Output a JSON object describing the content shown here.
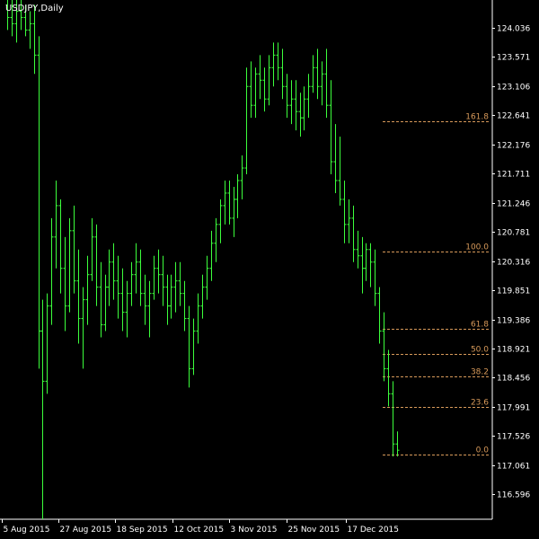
{
  "title": "USDJPY,Daily",
  "colors": {
    "background": "#000000",
    "candle": "#3cff3c",
    "axis": "#ffffff",
    "fib": "#d89a5a"
  },
  "chart_data": {
    "type": "bar",
    "symbol": "USDJPY",
    "timeframe": "Daily",
    "ylim": [
      116.2,
      124.45
    ],
    "y_ticks": [
      "124.036",
      "123.571",
      "123.106",
      "122.641",
      "122.176",
      "121.711",
      "121.246",
      "120.781",
      "120.316",
      "119.851",
      "119.386",
      "118.921",
      "118.456",
      "117.991",
      "117.526",
      "117.061",
      "116.596"
    ],
    "x_tick_labels": [
      "5 Aug 2015",
      "27 Aug 2015",
      "18 Sep 2015",
      "12 Oct 2015",
      "3 Nov 2015",
      "25 Nov 2015",
      "17 Dec 2015"
    ],
    "fibonacci": [
      {
        "label": "161.8",
        "value": 122.55
      },
      {
        "label": "100.0",
        "value": 120.47
      },
      {
        "label": "61.8",
        "value": 119.23
      },
      {
        "label": "50.0",
        "value": 118.84
      },
      {
        "label": "38.2",
        "value": 118.48
      },
      {
        "label": "23.6",
        "value": 117.99
      },
      {
        "label": "0.0",
        "value": 117.23
      }
    ],
    "ohlc": [
      [
        124.4,
        124.6,
        124.0,
        124.2
      ],
      [
        124.2,
        124.5,
        123.9,
        124.1
      ],
      [
        124.1,
        124.5,
        123.8,
        124.3
      ],
      [
        124.3,
        124.6,
        124.0,
        124.2
      ],
      [
        124.2,
        124.4,
        123.9,
        124.0
      ],
      [
        124.0,
        124.3,
        123.7,
        124.1
      ],
      [
        124.1,
        124.4,
        123.3,
        123.6
      ],
      [
        123.6,
        123.9,
        118.6,
        119.2
      ],
      [
        119.2,
        119.7,
        116.2,
        118.4
      ],
      [
        118.4,
        119.8,
        118.2,
        119.6
      ],
      [
        119.6,
        121.0,
        119.3,
        120.7
      ],
      [
        120.7,
        121.6,
        120.2,
        121.2
      ],
      [
        121.2,
        121.3,
        119.8,
        120.2
      ],
      [
        120.2,
        120.7,
        119.2,
        119.6
      ],
      [
        119.6,
        121.0,
        119.5,
        120.8
      ],
      [
        120.8,
        121.2,
        119.8,
        120.0
      ],
      [
        120.0,
        120.5,
        119.0,
        119.4
      ],
      [
        119.4,
        119.9,
        118.6,
        119.7
      ],
      [
        119.7,
        120.4,
        119.3,
        120.1
      ],
      [
        120.1,
        121.0,
        120.0,
        120.7
      ],
      [
        120.7,
        120.9,
        119.6,
        119.9
      ],
      [
        119.9,
        120.3,
        119.1,
        119.3
      ],
      [
        119.3,
        120.1,
        119.2,
        119.9
      ],
      [
        119.9,
        120.5,
        119.6,
        120.3
      ],
      [
        120.3,
        120.6,
        119.7,
        120.0
      ],
      [
        120.0,
        120.4,
        119.4,
        119.8
      ],
      [
        119.8,
        120.2,
        119.2,
        119.5
      ],
      [
        119.5,
        120.0,
        119.1,
        119.8
      ],
      [
        119.8,
        120.3,
        119.6,
        120.1
      ],
      [
        120.1,
        120.6,
        119.8,
        120.3
      ],
      [
        120.3,
        120.5,
        119.6,
        119.8
      ],
      [
        119.8,
        120.1,
        119.3,
        119.6
      ],
      [
        119.6,
        120.0,
        119.1,
        119.8
      ],
      [
        119.8,
        120.4,
        119.7,
        120.2
      ],
      [
        120.2,
        120.5,
        119.8,
        120.1
      ],
      [
        120.1,
        120.4,
        119.6,
        119.9
      ],
      [
        119.9,
        120.1,
        119.3,
        119.6
      ],
      [
        119.6,
        120.1,
        119.4,
        119.9
      ],
      [
        119.9,
        120.3,
        119.5,
        120.0
      ],
      [
        120.0,
        120.3,
        119.6,
        119.8
      ],
      [
        119.8,
        120.0,
        119.2,
        119.4
      ],
      [
        119.4,
        119.6,
        118.3,
        118.6
      ],
      [
        118.6,
        119.4,
        118.5,
        119.2
      ],
      [
        119.2,
        119.8,
        119.0,
        119.6
      ],
      [
        119.6,
        120.1,
        119.4,
        119.9
      ],
      [
        119.9,
        120.4,
        119.7,
        120.2
      ],
      [
        120.2,
        120.8,
        120.0,
        120.6
      ],
      [
        120.6,
        121.0,
        120.3,
        120.9
      ],
      [
        120.9,
        121.3,
        120.6,
        121.2
      ],
      [
        121.2,
        121.6,
        120.9,
        121.4
      ],
      [
        121.4,
        121.6,
        120.9,
        121.0
      ],
      [
        121.0,
        121.5,
        120.7,
        121.3
      ],
      [
        121.3,
        121.7,
        121.0,
        121.6
      ],
      [
        121.6,
        122.0,
        121.3,
        121.8
      ],
      [
        121.8,
        123.4,
        121.7,
        123.1
      ],
      [
        123.1,
        123.5,
        122.6,
        122.8
      ],
      [
        122.8,
        123.4,
        122.6,
        123.3
      ],
      [
        123.3,
        123.6,
        122.9,
        123.2
      ],
      [
        123.2,
        123.4,
        122.7,
        122.9
      ],
      [
        122.9,
        123.6,
        122.8,
        123.4
      ],
      [
        123.4,
        123.8,
        123.1,
        123.6
      ],
      [
        123.6,
        123.8,
        123.2,
        123.4
      ],
      [
        123.4,
        123.7,
        122.9,
        123.1
      ],
      [
        123.1,
        123.3,
        122.6,
        122.8
      ],
      [
        122.8,
        123.2,
        122.5,
        122.9
      ],
      [
        122.9,
        123.2,
        122.4,
        122.7
      ],
      [
        122.7,
        123.0,
        122.3,
        122.6
      ],
      [
        122.6,
        123.1,
        122.4,
        122.9
      ],
      [
        122.9,
        123.3,
        122.6,
        123.1
      ],
      [
        123.1,
        123.6,
        123.0,
        123.4
      ],
      [
        123.4,
        123.7,
        122.9,
        123.1
      ],
      [
        123.1,
        123.5,
        122.8,
        123.3
      ],
      [
        123.3,
        123.7,
        122.6,
        122.8
      ],
      [
        122.8,
        123.2,
        121.7,
        121.9
      ],
      [
        121.9,
        122.5,
        121.4,
        121.6
      ],
      [
        121.6,
        122.3,
        121.2,
        121.3
      ],
      [
        121.3,
        121.6,
        120.6,
        120.9
      ],
      [
        120.9,
        121.3,
        120.6,
        121.0
      ],
      [
        121.0,
        121.2,
        120.3,
        120.5
      ],
      [
        120.5,
        120.8,
        120.2,
        120.4
      ],
      [
        120.4,
        120.7,
        119.8,
        120.2
      ],
      [
        120.2,
        120.6,
        120.0,
        120.5
      ],
      [
        120.5,
        120.6,
        119.9,
        120.3
      ],
      [
        120.3,
        120.5,
        119.6,
        119.8
      ],
      [
        119.8,
        119.9,
        119.0,
        119.2
      ],
      [
        119.2,
        119.5,
        118.4,
        118.6
      ],
      [
        118.6,
        118.9,
        118.0,
        118.2
      ],
      [
        118.2,
        118.4,
        117.2,
        117.4
      ],
      [
        117.4,
        117.6,
        117.2,
        117.3
      ]
    ]
  }
}
